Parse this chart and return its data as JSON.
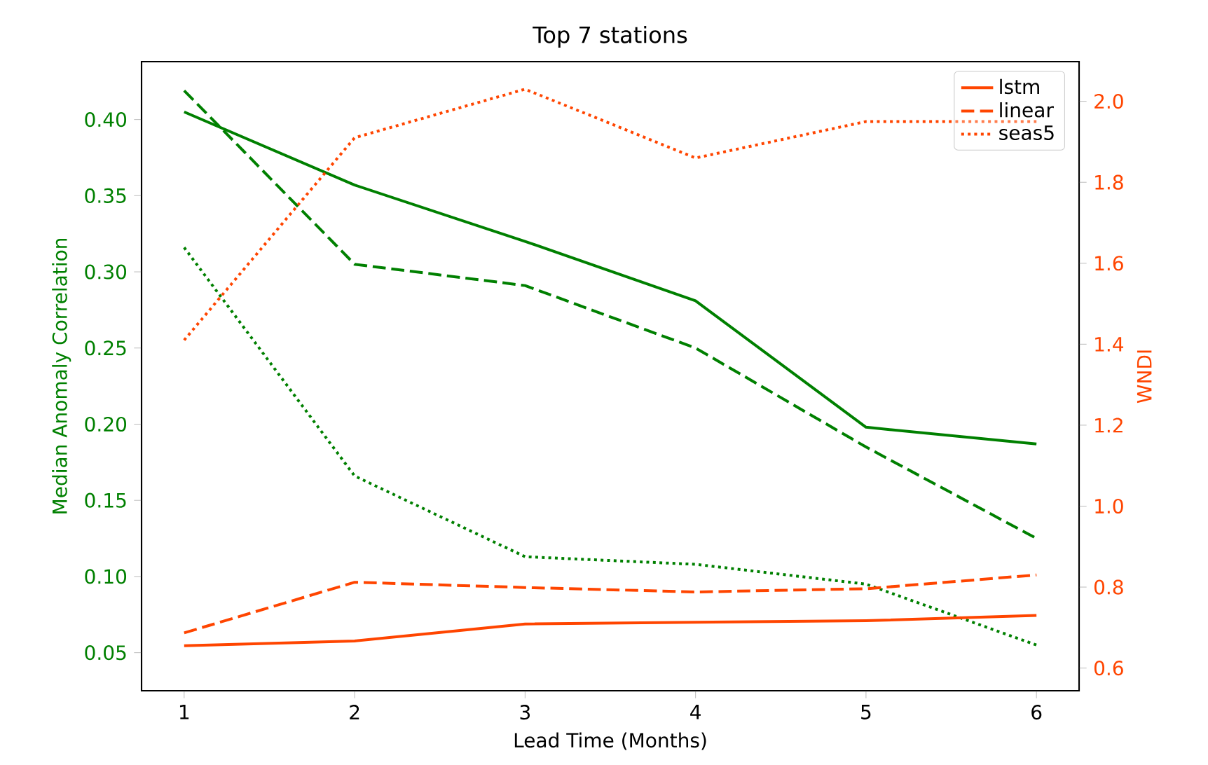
{
  "chart_data": {
    "type": "line",
    "title": "Top 7 stations",
    "xlabel": "Lead Time (Months)",
    "ylabel": "Median Anomaly Correlation",
    "y2label": "WNDI",
    "x": [
      1,
      2,
      3,
      4,
      5,
      6
    ],
    "series": [
      {
        "color": "#008000",
        "line_style": "solid",
        "values": [
          0.405,
          0.357,
          0.32,
          0.281,
          0.198,
          0.187
        ]
      },
      {
        "color": "#008000",
        "line_style": "dashed",
        "values": [
          0.419,
          0.305,
          0.291,
          0.25,
          0.185,
          0.125
        ]
      },
      {
        "color": "#008000",
        "line_style": "dotted",
        "values": [
          0.316,
          0.166,
          0.113,
          0.108,
          0.095,
          0.055
        ]
      },
      {
        "name": "lstm",
        "axis": "y2",
        "color": "#ff4500",
        "line_style": "solid",
        "values": [
          0.655,
          0.667,
          0.709,
          0.713,
          0.717,
          0.73
        ]
      },
      {
        "name": "linear",
        "axis": "y2",
        "color": "#ff4500",
        "line_style": "dashed",
        "values": [
          0.687,
          0.812,
          0.799,
          0.788,
          0.796,
          0.83
        ]
      },
      {
        "name": "seas5",
        "axis": "y2",
        "color": "#ff4500",
        "line_style": "dotted",
        "values": [
          1.41,
          1.91,
          2.03,
          1.86,
          1.95,
          1.95
        ]
      }
    ],
    "xlim": [
      0.75,
      6.25
    ],
    "xticks": [
      1,
      2,
      3,
      4,
      5,
      6
    ],
    "ylim": [
      0.025,
      0.438
    ],
    "yticks": [
      {
        "value": 0.05,
        "label": "0.05"
      },
      {
        "value": 0.1,
        "label": "0.10"
      },
      {
        "value": 0.15,
        "label": "0.15"
      },
      {
        "value": 0.2,
        "label": "0.20"
      },
      {
        "value": 0.25,
        "label": "0.25"
      },
      {
        "value": 0.3,
        "label": "0.30"
      },
      {
        "value": 0.35,
        "label": "0.35"
      },
      {
        "value": 0.4,
        "label": "0.40"
      }
    ],
    "y2lim": [
      0.544,
      2.098
    ],
    "y2ticks": [
      {
        "value": 0.6,
        "label": "0.6"
      },
      {
        "value": 0.8,
        "label": "0.8"
      },
      {
        "value": 1.0,
        "label": "1.0"
      },
      {
        "value": 1.2,
        "label": "1.2"
      },
      {
        "value": 1.4,
        "label": "1.4"
      },
      {
        "value": 1.6,
        "label": "1.6"
      },
      {
        "value": 1.8,
        "label": "1.8"
      },
      {
        "value": 2.0,
        "label": "2.0"
      }
    ],
    "legend": "top right",
    "grid": false,
    "marker": "none"
  }
}
